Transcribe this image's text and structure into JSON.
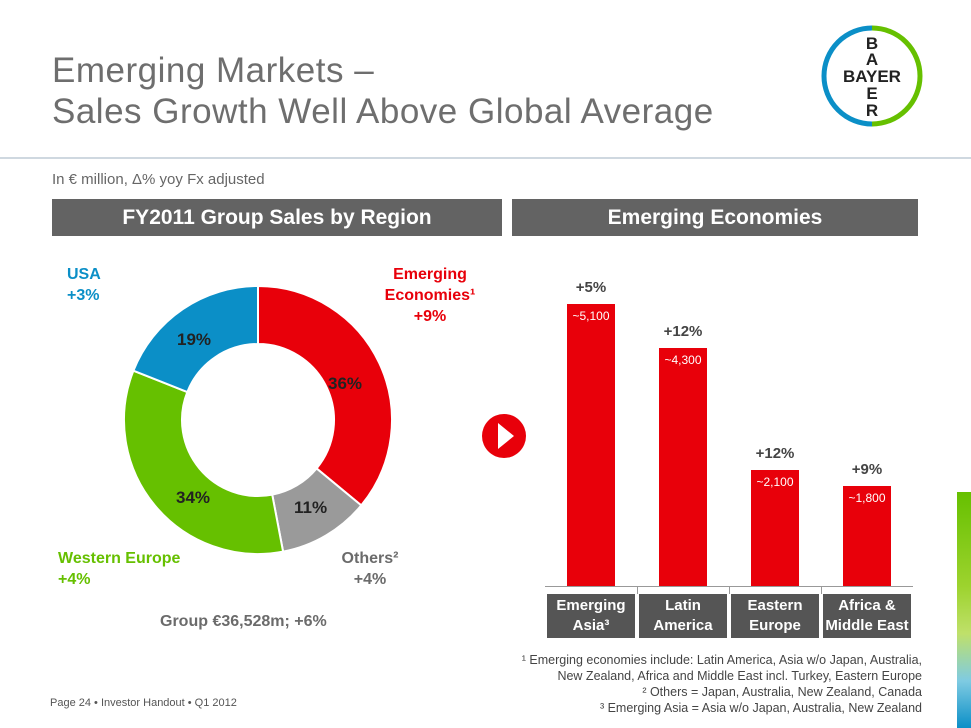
{
  "title": {
    "line1": "Emerging Markets –",
    "line2": "Sales Growth Well Above Global Average"
  },
  "logo": {
    "text_top": "B",
    "text_a": "A",
    "text_mid": "BAYER",
    "text_e": "E",
    "text_r": "R",
    "outer_color": "#0b8fc7",
    "inner_color": "#66c000"
  },
  "subtitle": "In € million, Δ% yoy Fx adjusted",
  "left_header": "FY2011 Group Sales by Region",
  "right_header": "Emerging Economies",
  "donut": {
    "labels": {
      "usa": [
        "USA",
        "+3%"
      ],
      "emerging": [
        "Emerging",
        "Economies¹",
        "+9%"
      ],
      "western": [
        "Western Europe",
        "+4%"
      ],
      "others": [
        "Others²",
        "+4%"
      ]
    },
    "group_total": "Group €36,528m; +6%"
  },
  "arrow_icon": "play-arrow-icon",
  "chart_data": [
    {
      "type": "pie",
      "categories": [
        "Emerging Economies",
        "Others",
        "Western Europe",
        "USA"
      ],
      "values": [
        36,
        11,
        34,
        19
      ],
      "value_labels": [
        "36%",
        "11%",
        "34%",
        "19%"
      ],
      "colors": [
        "#e8000a",
        "#9a9a9a",
        "#66c000",
        "#0b8fc7"
      ]
    },
    {
      "type": "bar",
      "categories": [
        "Emerging Asia³",
        "Latin America",
        "Eastern Europe",
        "Africa & Middle East"
      ],
      "category_lines": [
        [
          "Emerging",
          "Asia³"
        ],
        [
          "Latin",
          "America"
        ],
        [
          "Eastern",
          "Europe"
        ],
        [
          "Africa &",
          "Middle East"
        ]
      ],
      "values": [
        5100,
        4300,
        2100,
        1800
      ],
      "value_labels": [
        "~5,100",
        "~4,300",
        "~2,100",
        "~1,800"
      ],
      "growth_labels": [
        "+5%",
        "+12%",
        "+12%",
        "+9%"
      ],
      "color": "#e8000a",
      "ylim": [
        0,
        5100
      ]
    }
  ],
  "footnotes": {
    "n1a": "¹ Emerging economies include: Latin America, Asia w/o Japan, Australia,",
    "n1b": "New Zealand, Africa and Middle East incl. Turkey, Eastern Europe",
    "n2": "² Others = Japan, Australia, New Zealand, Canada",
    "n3": "³ Emerging Asia = Asia w/o Japan, Australia, New Zealand"
  },
  "page_footer": "Page 24 • Investor Handout • Q1 2012"
}
